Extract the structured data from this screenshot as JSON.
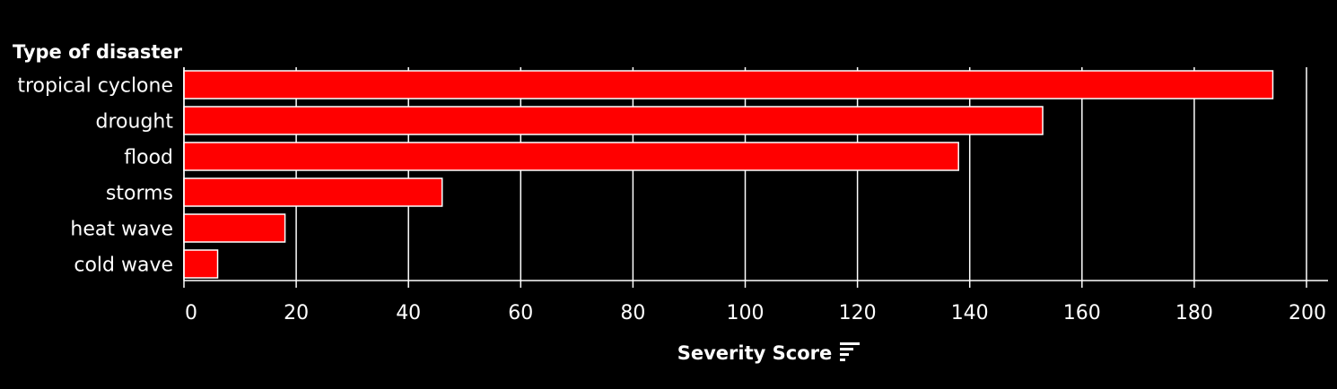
{
  "chart_data": {
    "type": "bar",
    "orientation": "horizontal",
    "row_header": "Type of disaster",
    "categories": [
      "tropical cyclone",
      "drought",
      "flood",
      "storms",
      "heat wave",
      "cold wave"
    ],
    "values": [
      194,
      153,
      138,
      46,
      18,
      6
    ],
    "xlabel": "Severity Score",
    "xlim": [
      0,
      200
    ],
    "xticks": [
      0,
      20,
      40,
      60,
      80,
      100,
      120,
      140,
      160,
      180,
      200
    ],
    "grid": true,
    "sort_icon": "sort-descending-icon"
  },
  "colors": {
    "background": "#000000",
    "bar": "#ff0000",
    "bar_outline": "#ffffff",
    "grid": "#ffffff",
    "text": "#ffffff"
  }
}
